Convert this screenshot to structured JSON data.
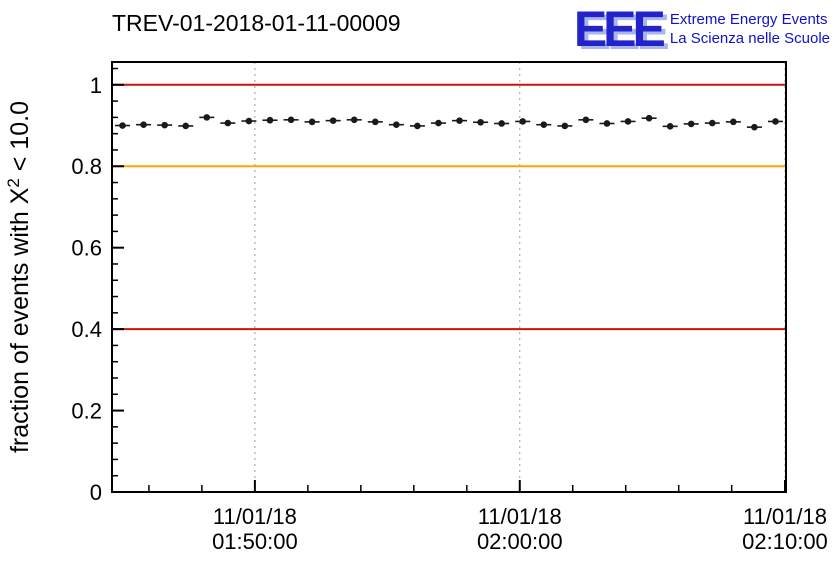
{
  "logo": {
    "mark": "EEE",
    "line1": "Extreme Energy Events",
    "line2": "La Scienza nelle Scuole"
  },
  "chart_data": {
    "type": "line",
    "title": "TREV-01-2018-01-11-00009",
    "ylabel": "fraction of events with X² < 10.0",
    "ylabel_parts": {
      "pre": "fraction of events with X",
      "sup": "2",
      "post": " < 10.0"
    },
    "ylim": [
      0,
      1.056
    ],
    "yticks": [
      0,
      0.2,
      0.4,
      0.6,
      0.8,
      1.0
    ],
    "ytick_labels": [
      "0",
      "0.2",
      "0.4",
      "0.6",
      "0.8",
      "1"
    ],
    "xticks": [
      {
        "pos": 0.212,
        "line1": "11/01/18",
        "line2": "01:50:00"
      },
      {
        "pos": 0.605,
        "line1": "11/01/18",
        "line2": "02:00:00"
      },
      {
        "pos": 0.9985,
        "line1": "11/01/18",
        "line2": "02:10:00"
      }
    ],
    "x_minor_step": 0.0786,
    "grid": true,
    "grid_color": "#9a9a9a",
    "frame_color": "#000000",
    "reference_lines": [
      {
        "y": 1.0,
        "color": "#cc1111"
      },
      {
        "y": 0.8,
        "color": "#ffa500"
      },
      {
        "y": 0.4,
        "color": "#cc1111"
      }
    ],
    "series": [
      {
        "name": "fraction of events with chi2 < 10.0",
        "marker": "dot",
        "color": "#1a1a1a",
        "values": [
          0.9,
          0.902,
          0.901,
          0.899,
          0.92,
          0.906,
          0.911,
          0.913,
          0.914,
          0.909,
          0.912,
          0.914,
          0.909,
          0.902,
          0.899,
          0.906,
          0.912,
          0.908,
          0.905,
          0.91,
          0.902,
          0.899,
          0.914,
          0.905,
          0.91,
          0.918,
          0.898,
          0.904,
          0.906,
          0.909,
          0.896,
          0.91
        ]
      }
    ]
  }
}
